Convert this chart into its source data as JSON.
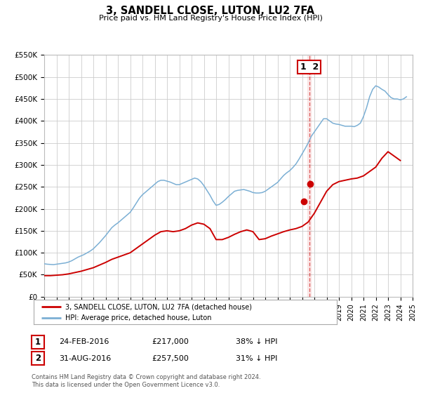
{
  "title": "3, SANDELL CLOSE, LUTON, LU2 7FA",
  "subtitle": "Price paid vs. HM Land Registry's House Price Index (HPI)",
  "ylim": [
    0,
    550000
  ],
  "xlim_start": 1995.0,
  "xlim_end": 2025.0,
  "ytick_labels": [
    "£0",
    "£50K",
    "£100K",
    "£150K",
    "£200K",
    "£250K",
    "£300K",
    "£350K",
    "£400K",
    "£450K",
    "£500K",
    "£550K"
  ],
  "ytick_values": [
    0,
    50000,
    100000,
    150000,
    200000,
    250000,
    300000,
    350000,
    400000,
    450000,
    500000,
    550000
  ],
  "hpi_color": "#7bafd4",
  "price_color": "#cc0000",
  "vline_x": 2016.58,
  "vline_color": "#cc0000",
  "dot1_x": 2016.12,
  "dot1_y": 217000,
  "dot2_x": 2016.66,
  "dot2_y": 257500,
  "legend_label1": "3, SANDELL CLOSE, LUTON, LU2 7FA (detached house)",
  "legend_label2": "HPI: Average price, detached house, Luton",
  "table_row1": [
    "1",
    "24-FEB-2016",
    "£217,000",
    "38% ↓ HPI"
  ],
  "table_row2": [
    "2",
    "31-AUG-2016",
    "£257,500",
    "31% ↓ HPI"
  ],
  "footer_text": "Contains HM Land Registry data © Crown copyright and database right 2024.\nThis data is licensed under the Open Government Licence v3.0.",
  "bg_color": "#ffffff",
  "grid_color": "#cccccc",
  "hpi_data_x": [
    1995.0,
    1995.25,
    1995.5,
    1995.75,
    1996.0,
    1996.25,
    1996.5,
    1996.75,
    1997.0,
    1997.25,
    1997.5,
    1997.75,
    1998.0,
    1998.25,
    1998.5,
    1998.75,
    1999.0,
    1999.25,
    1999.5,
    1999.75,
    2000.0,
    2000.25,
    2000.5,
    2000.75,
    2001.0,
    2001.25,
    2001.5,
    2001.75,
    2002.0,
    2002.25,
    2002.5,
    2002.75,
    2003.0,
    2003.25,
    2003.5,
    2003.75,
    2004.0,
    2004.25,
    2004.5,
    2004.75,
    2005.0,
    2005.25,
    2005.5,
    2005.75,
    2006.0,
    2006.25,
    2006.5,
    2006.75,
    2007.0,
    2007.25,
    2007.5,
    2007.75,
    2008.0,
    2008.25,
    2008.5,
    2008.75,
    2009.0,
    2009.25,
    2009.5,
    2009.75,
    2010.0,
    2010.25,
    2010.5,
    2010.75,
    2011.0,
    2011.25,
    2011.5,
    2011.75,
    2012.0,
    2012.25,
    2012.5,
    2012.75,
    2013.0,
    2013.25,
    2013.5,
    2013.75,
    2014.0,
    2014.25,
    2014.5,
    2014.75,
    2015.0,
    2015.25,
    2015.5,
    2015.75,
    2016.0,
    2016.25,
    2016.5,
    2016.75,
    2017.0,
    2017.25,
    2017.5,
    2017.75,
    2018.0,
    2018.25,
    2018.5,
    2018.75,
    2019.0,
    2019.25,
    2019.5,
    2019.75,
    2020.0,
    2020.25,
    2020.5,
    2020.75,
    2021.0,
    2021.25,
    2021.5,
    2021.75,
    2022.0,
    2022.25,
    2022.5,
    2022.75,
    2023.0,
    2023.25,
    2023.5,
    2023.75,
    2024.0,
    2024.25,
    2024.5
  ],
  "hpi_data_y": [
    75000,
    74000,
    73500,
    73000,
    74000,
    75000,
    76000,
    77000,
    79000,
    82000,
    86000,
    90000,
    93000,
    96000,
    100000,
    104000,
    109000,
    116000,
    123000,
    131000,
    139000,
    148000,
    157000,
    163000,
    168000,
    174000,
    180000,
    186000,
    192000,
    202000,
    213000,
    224000,
    232000,
    238000,
    244000,
    250000,
    256000,
    262000,
    265000,
    265000,
    263000,
    261000,
    258000,
    255000,
    255000,
    258000,
    261000,
    264000,
    267000,
    270000,
    268000,
    262000,
    253000,
    242000,
    231000,
    218000,
    208000,
    210000,
    215000,
    221000,
    228000,
    234000,
    240000,
    242000,
    243000,
    244000,
    242000,
    240000,
    237000,
    236000,
    236000,
    237000,
    240000,
    245000,
    250000,
    255000,
    260000,
    268000,
    276000,
    282000,
    287000,
    294000,
    302000,
    313000,
    325000,
    337000,
    350000,
    365000,
    375000,
    385000,
    395000,
    405000,
    405000,
    400000,
    395000,
    393000,
    392000,
    390000,
    388000,
    388000,
    388000,
    387000,
    390000,
    395000,
    410000,
    430000,
    455000,
    472000,
    480000,
    477000,
    472000,
    468000,
    460000,
    453000,
    450000,
    450000,
    448000,
    450000,
    455000
  ],
  "price_data_x": [
    1995.0,
    1995.5,
    1996.0,
    1996.5,
    1997.0,
    1997.5,
    1998.0,
    1998.5,
    1999.0,
    1999.5,
    2000.0,
    2000.5,
    2001.0,
    2001.5,
    2002.0,
    2002.5,
    2003.0,
    2003.5,
    2004.0,
    2004.5,
    2005.0,
    2005.5,
    2006.0,
    2006.5,
    2007.0,
    2007.5,
    2008.0,
    2008.5,
    2009.0,
    2009.5,
    2010.0,
    2010.5,
    2011.0,
    2011.5,
    2012.0,
    2012.5,
    2013.0,
    2013.5,
    2014.0,
    2014.5,
    2015.0,
    2015.5,
    2016.0,
    2016.5,
    2017.0,
    2017.5,
    2018.0,
    2018.5,
    2019.0,
    2019.5,
    2020.0,
    2020.5,
    2021.0,
    2021.5,
    2022.0,
    2022.5,
    2023.0,
    2023.5,
    2024.0
  ],
  "price_data_y": [
    48000,
    48000,
    49000,
    50000,
    52000,
    55000,
    58000,
    62000,
    66000,
    72000,
    78000,
    85000,
    90000,
    95000,
    100000,
    110000,
    120000,
    130000,
    140000,
    148000,
    150000,
    148000,
    150000,
    155000,
    163000,
    168000,
    165000,
    155000,
    130000,
    130000,
    135000,
    142000,
    148000,
    152000,
    148000,
    130000,
    132000,
    138000,
    143000,
    148000,
    152000,
    155000,
    160000,
    170000,
    190000,
    215000,
    240000,
    255000,
    262000,
    265000,
    268000,
    270000,
    275000,
    285000,
    295000,
    315000,
    330000,
    320000,
    310000
  ]
}
